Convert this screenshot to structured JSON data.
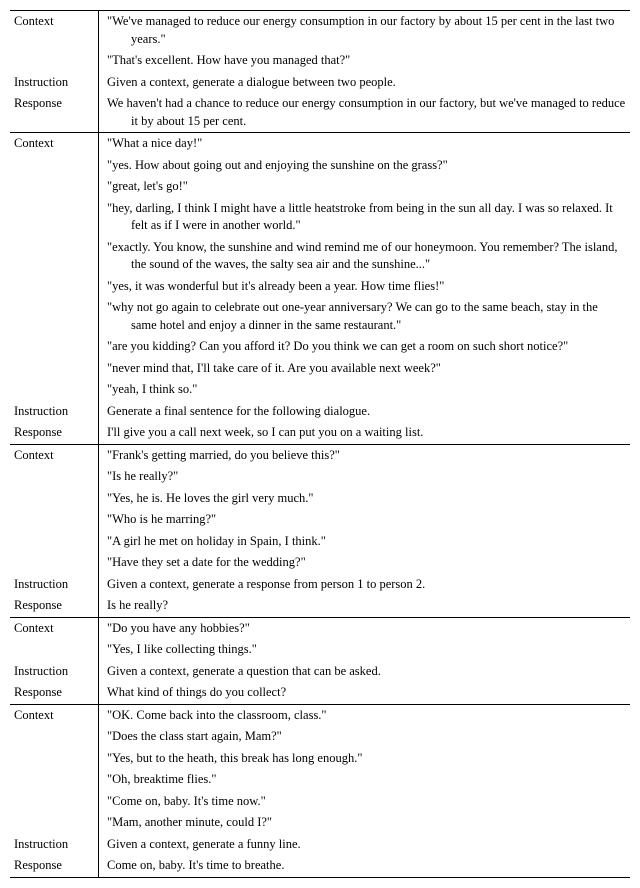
{
  "labels": {
    "context": "Context",
    "instruction": "Instruction",
    "response": "Response"
  },
  "blocks": [
    {
      "context_lines": [
        "\"We've managed to reduce our energy consumption in our factory by about 15 per cent in the last two years.\"",
        "\"That's excellent. How have you managed that?\""
      ],
      "instruction": "Given a context, generate a dialogue between two people.",
      "response": "We haven't had a chance to reduce our energy consumption in our factory, but we've managed to reduce it by about 15 per cent."
    },
    {
      "context_lines": [
        "\"What a nice day!\"",
        "\"yes. How about going out and enjoying the sunshine on the grass?\"",
        "\"great, let's go!\"",
        "\"hey, darling, I think I might have a little heatstroke from being in the sun all day. I was so relaxed. It felt as if I were in another world.\"",
        "\"exactly. You know, the sunshine and wind remind me of our honeymoon. You remember? The island, the sound of the waves, the salty sea air and the sunshine...\"",
        "\"yes, it was wonderful but it's already been a year. How time flies!\"",
        "\"why not go again to celebrate out one-year anniversary? We can go to the same beach, stay in the same hotel and enjoy a dinner in the same restaurant.\"",
        "\"are you kidding? Can you afford it? Do you think we can get a room on such short notice?\"",
        "\"never mind that, I'll take care of it. Are you available next week?\"",
        "\"yeah, I think so.\""
      ],
      "instruction": "Generate a final sentence for the following dialogue.",
      "response": "I'll give you a call next week, so I can put you on a waiting list."
    },
    {
      "context_lines": [
        "\"Frank's getting married, do you believe this?\"",
        "\"Is he really?\"",
        "\"Yes, he is. He loves the girl very much.\"",
        "\"Who is he marring?\"",
        "\"A girl he met on holiday in Spain, I think.\"",
        "\"Have they set a date for the wedding?\""
      ],
      "instruction": "Given a context, generate a response from person 1 to person 2.",
      "response": "Is he really?"
    },
    {
      "context_lines": [
        "\"Do you have any hobbies?\"",
        "\"Yes, I like collecting things.\""
      ],
      "instruction": "Given a context, generate a question that can be asked.",
      "response": "What kind of things do you collect?"
    },
    {
      "context_lines": [
        "\"OK. Come back into the classroom, class.\"",
        "\"Does the class start again, Mam?\"",
        "\"Yes, but to the heath, this break has long enough.\"",
        "\"Oh, breaktime flies.\"",
        "\"Come on, baby. It's time now.\"",
        "\"Mam, another minute, could I?\""
      ],
      "instruction": "Given a context, generate a funny line.",
      "response": "Come on, baby. It's time to breathe."
    }
  ]
}
